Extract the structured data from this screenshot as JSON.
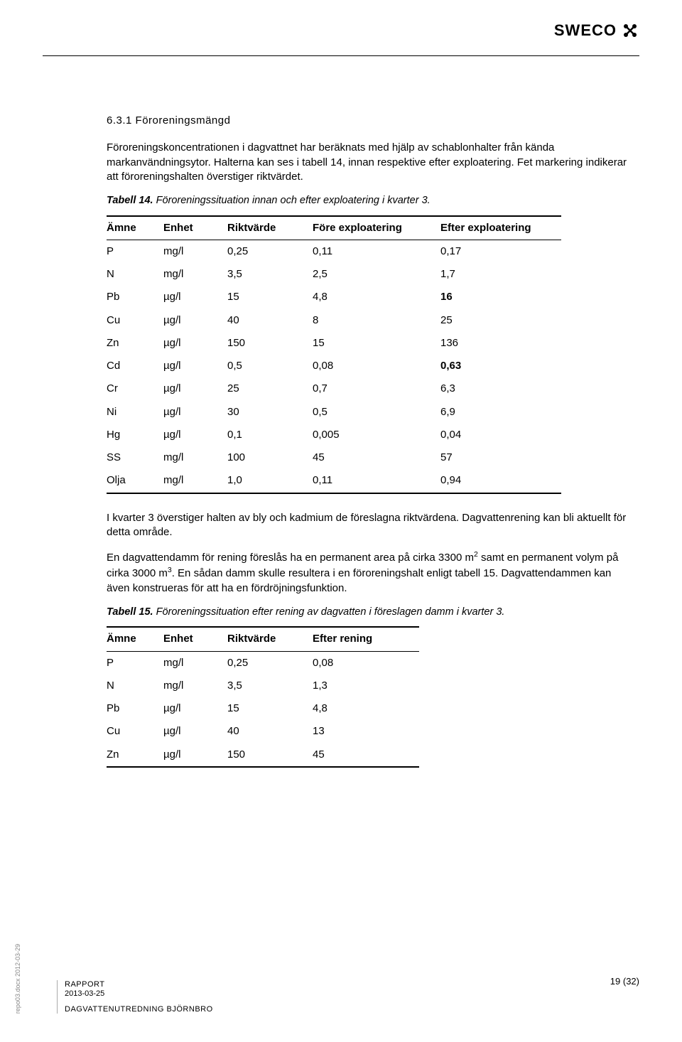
{
  "logo": {
    "text": "SWECO"
  },
  "section": {
    "heading": "6.3.1 Föroreningsmängd"
  },
  "paragraphs": {
    "p1": "Föroreningskoncentrationen i dagvattnet har beräknats med hjälp av schablonhalter från kända markanvändningsytor. Halterna kan ses i tabell 14, innan respektive efter exploatering. Fet markering indikerar att föroreningshalten överstiger riktvärdet.",
    "p2": "I kvarter 3 överstiger halten av bly och kadmium de föreslagna riktvärdena. Dagvattenrening kan bli aktuellt för detta område.",
    "p3a": "En dagvattendamm för rening föreslås ha en permanent area på cirka 3300 m",
    "p3b": " samt en permanent volym på cirka 3000 m",
    "p3c": ". En sådan damm skulle resultera i en föroreningshalt enligt tabell 15. Dagvattendammen kan även konstrueras för att ha en fördröjningsfunktion."
  },
  "table14": {
    "caption_bold": "Tabell 14.",
    "caption_rest": " Föroreningssituation innan och efter exploatering i kvarter 3.",
    "headers": [
      "Ämne",
      "Enhet",
      "Riktvärde",
      "Före exploatering",
      "Efter exploatering"
    ],
    "rows": [
      {
        "c": [
          "P",
          "mg/l",
          "0,25",
          "0,11",
          "0,17"
        ],
        "bold": [
          false,
          false,
          false,
          false,
          false
        ]
      },
      {
        "c": [
          "N",
          "mg/l",
          "3,5",
          "2,5",
          "1,7"
        ],
        "bold": [
          false,
          false,
          false,
          false,
          false
        ]
      },
      {
        "c": [
          "Pb",
          "µg/l",
          "15",
          "4,8",
          "16"
        ],
        "bold": [
          false,
          false,
          false,
          false,
          true
        ]
      },
      {
        "c": [
          "Cu",
          "µg/l",
          "40",
          "8",
          "25"
        ],
        "bold": [
          false,
          false,
          false,
          false,
          false
        ]
      },
      {
        "c": [
          "Zn",
          "µg/l",
          "150",
          "15",
          "136"
        ],
        "bold": [
          false,
          false,
          false,
          false,
          false
        ]
      },
      {
        "c": [
          "Cd",
          "µg/l",
          "0,5",
          "0,08",
          "0,63"
        ],
        "bold": [
          false,
          false,
          false,
          false,
          true
        ]
      },
      {
        "c": [
          "Cr",
          "µg/l",
          "25",
          "0,7",
          "6,3"
        ],
        "bold": [
          false,
          false,
          false,
          false,
          false
        ]
      },
      {
        "c": [
          "Ni",
          "µg/l",
          "30",
          "0,5",
          "6,9"
        ],
        "bold": [
          false,
          false,
          false,
          false,
          false
        ]
      },
      {
        "c": [
          "Hg",
          "µg/l",
          "0,1",
          "0,005",
          "0,04"
        ],
        "bold": [
          false,
          false,
          false,
          false,
          false
        ]
      },
      {
        "c": [
          "SS",
          "mg/l",
          "100",
          "45",
          "57"
        ],
        "bold": [
          false,
          false,
          false,
          false,
          false
        ]
      },
      {
        "c": [
          "Olja",
          "mg/l",
          "1,0",
          "0,11",
          "0,94"
        ],
        "bold": [
          false,
          false,
          false,
          false,
          false
        ]
      }
    ]
  },
  "table15": {
    "caption_bold": "Tabell 15.",
    "caption_rest": " Föroreningssituation efter rening av dagvatten i föreslagen damm i kvarter 3.",
    "headers": [
      "Ämne",
      "Enhet",
      "Riktvärde",
      "Efter rening"
    ],
    "rows": [
      {
        "c": [
          "P",
          "mg/l",
          "0,25",
          "0,08"
        ]
      },
      {
        "c": [
          "N",
          "mg/l",
          "3,5",
          "1,3"
        ]
      },
      {
        "c": [
          "Pb",
          "µg/l",
          "15",
          "4,8"
        ]
      },
      {
        "c": [
          "Cu",
          "µg/l",
          "40",
          "13"
        ]
      },
      {
        "c": [
          "Zn",
          "µg/l",
          "150",
          "45"
        ]
      }
    ]
  },
  "footer": {
    "line1": "RAPPORT",
    "line2": "2013-03-25",
    "line3": "DAGVATTENUTREDNING BJÖRNBRO",
    "page": "19 (32)"
  },
  "side": "repo03.docx 2012-03-29"
}
